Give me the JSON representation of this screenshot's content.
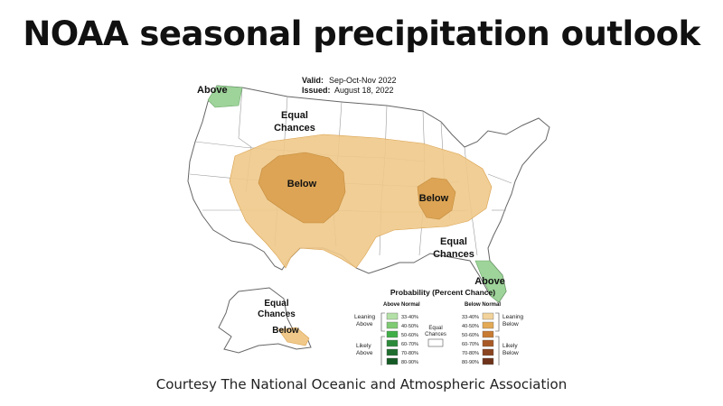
{
  "slide": {
    "title": "NOAA seasonal precipitation outlook",
    "caption": "Courtesy The National Oceanic and Atmospheric Association"
  },
  "map": {
    "valid_label": "Valid:",
    "valid_value": "Sep-Oct-Nov 2022",
    "issued_label": "Issued:",
    "issued_value": "August 18, 2022",
    "regions": {
      "above_northwest": "Above",
      "equal_chances_north": [
        "Equal",
        "Chances"
      ],
      "below_west": "Below",
      "below_central": "Below",
      "equal_chances_southeast": [
        "Equal",
        "Chances"
      ],
      "above_florida": "Above",
      "equal_chances_alaska": [
        "Equal",
        "Chances"
      ],
      "below_alaska": "Below"
    },
    "colors": {
      "leaning_below": "#f0c98a",
      "below_40_50": "#d9a04c",
      "leaning_above": "#9ed39a",
      "border": "#777777"
    }
  },
  "legend": {
    "title": "Probability (Percent Chance)",
    "above_header": "Above Normal",
    "below_header": "Below Normal",
    "equal_label": [
      "Equal",
      "Chances"
    ],
    "above_group_leaning": [
      "Leaning",
      "Above"
    ],
    "above_group_likely": [
      "Likely",
      "Above"
    ],
    "below_group_leaning": [
      "Leaning",
      "Below"
    ],
    "below_group_likely": [
      "Likely",
      "Below"
    ],
    "bins": [
      "33-40%",
      "40-50%",
      "50-60%",
      "60-70%",
      "70-80%",
      "80-90%"
    ],
    "above_colors": [
      "#b3e0a6",
      "#7fcb73",
      "#3fae47",
      "#2b8a3a",
      "#1f6e2f",
      "#155a25"
    ],
    "below_colors": [
      "#f2d39b",
      "#e3a955",
      "#c87b33",
      "#a85a26",
      "#8a4420",
      "#6e331a"
    ]
  }
}
